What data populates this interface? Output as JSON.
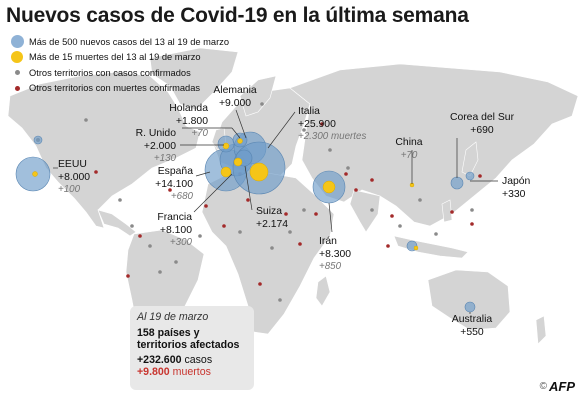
{
  "title": "Nuevos casos de Covid-19 en la última semana",
  "legend": [
    {
      "text": "Más de 500 nuevos casos del 13 al 19 de marzo",
      "symbol": "blue-circle-icon"
    },
    {
      "text": "Más de 15 muertes del 13 al 19 de marzo",
      "symbol": "yellow-circle-icon"
    },
    {
      "text": "Otros territorios con casos confirmados",
      "symbol": "gray-dot-icon"
    },
    {
      "text": "Otros territorios con muertes confirmadas",
      "symbol": "red-dot-icon"
    }
  ],
  "countries": [
    {
      "name": "EEUU",
      "cases": "+8.000",
      "deaths": "+100"
    },
    {
      "name": "Holanda",
      "cases": "+1.800",
      "deaths": "+70"
    },
    {
      "name": "Alemania",
      "cases": "+9.000",
      "deaths": ""
    },
    {
      "name": "Italia",
      "cases": "+25.900",
      "deaths": "+2.300 muertes"
    },
    {
      "name": "R. Unido",
      "cases": "+2.000",
      "deaths": "+130"
    },
    {
      "name": "España",
      "cases": "+14.100",
      "deaths": "+680"
    },
    {
      "name": "Francia",
      "cases": "+8.100",
      "deaths": "+300"
    },
    {
      "name": "Suiza",
      "cases": "+2.174",
      "deaths": ""
    },
    {
      "name": "China",
      "cases": "",
      "deaths": "+70"
    },
    {
      "name": "Corea del Sur",
      "cases": "+690",
      "deaths": ""
    },
    {
      "name": "Japón",
      "cases": "+330",
      "deaths": ""
    },
    {
      "name": "Irán",
      "cases": "+8.300",
      "deaths": "+850"
    },
    {
      "name": "Australia",
      "cases": "+550",
      "deaths": ""
    }
  ],
  "summary": {
    "date": "Al 19 de marzo",
    "countries_count": "158",
    "countries_text": "países y",
    "countries_text2": "territorios afectados",
    "cases": "+232.600",
    "cases_unit": "casos",
    "deaths": "+9.800",
    "deaths_unit": "muertos"
  },
  "credit": {
    "symbol": "©",
    "agency": "AFP"
  },
  "colors": {
    "case_bubble": "#6f9cc9",
    "death_bubble": "#f5c518",
    "land": "#d4d4d4",
    "gray_dot": "#8a8a8a",
    "red_dot": "#a32a2a"
  }
}
